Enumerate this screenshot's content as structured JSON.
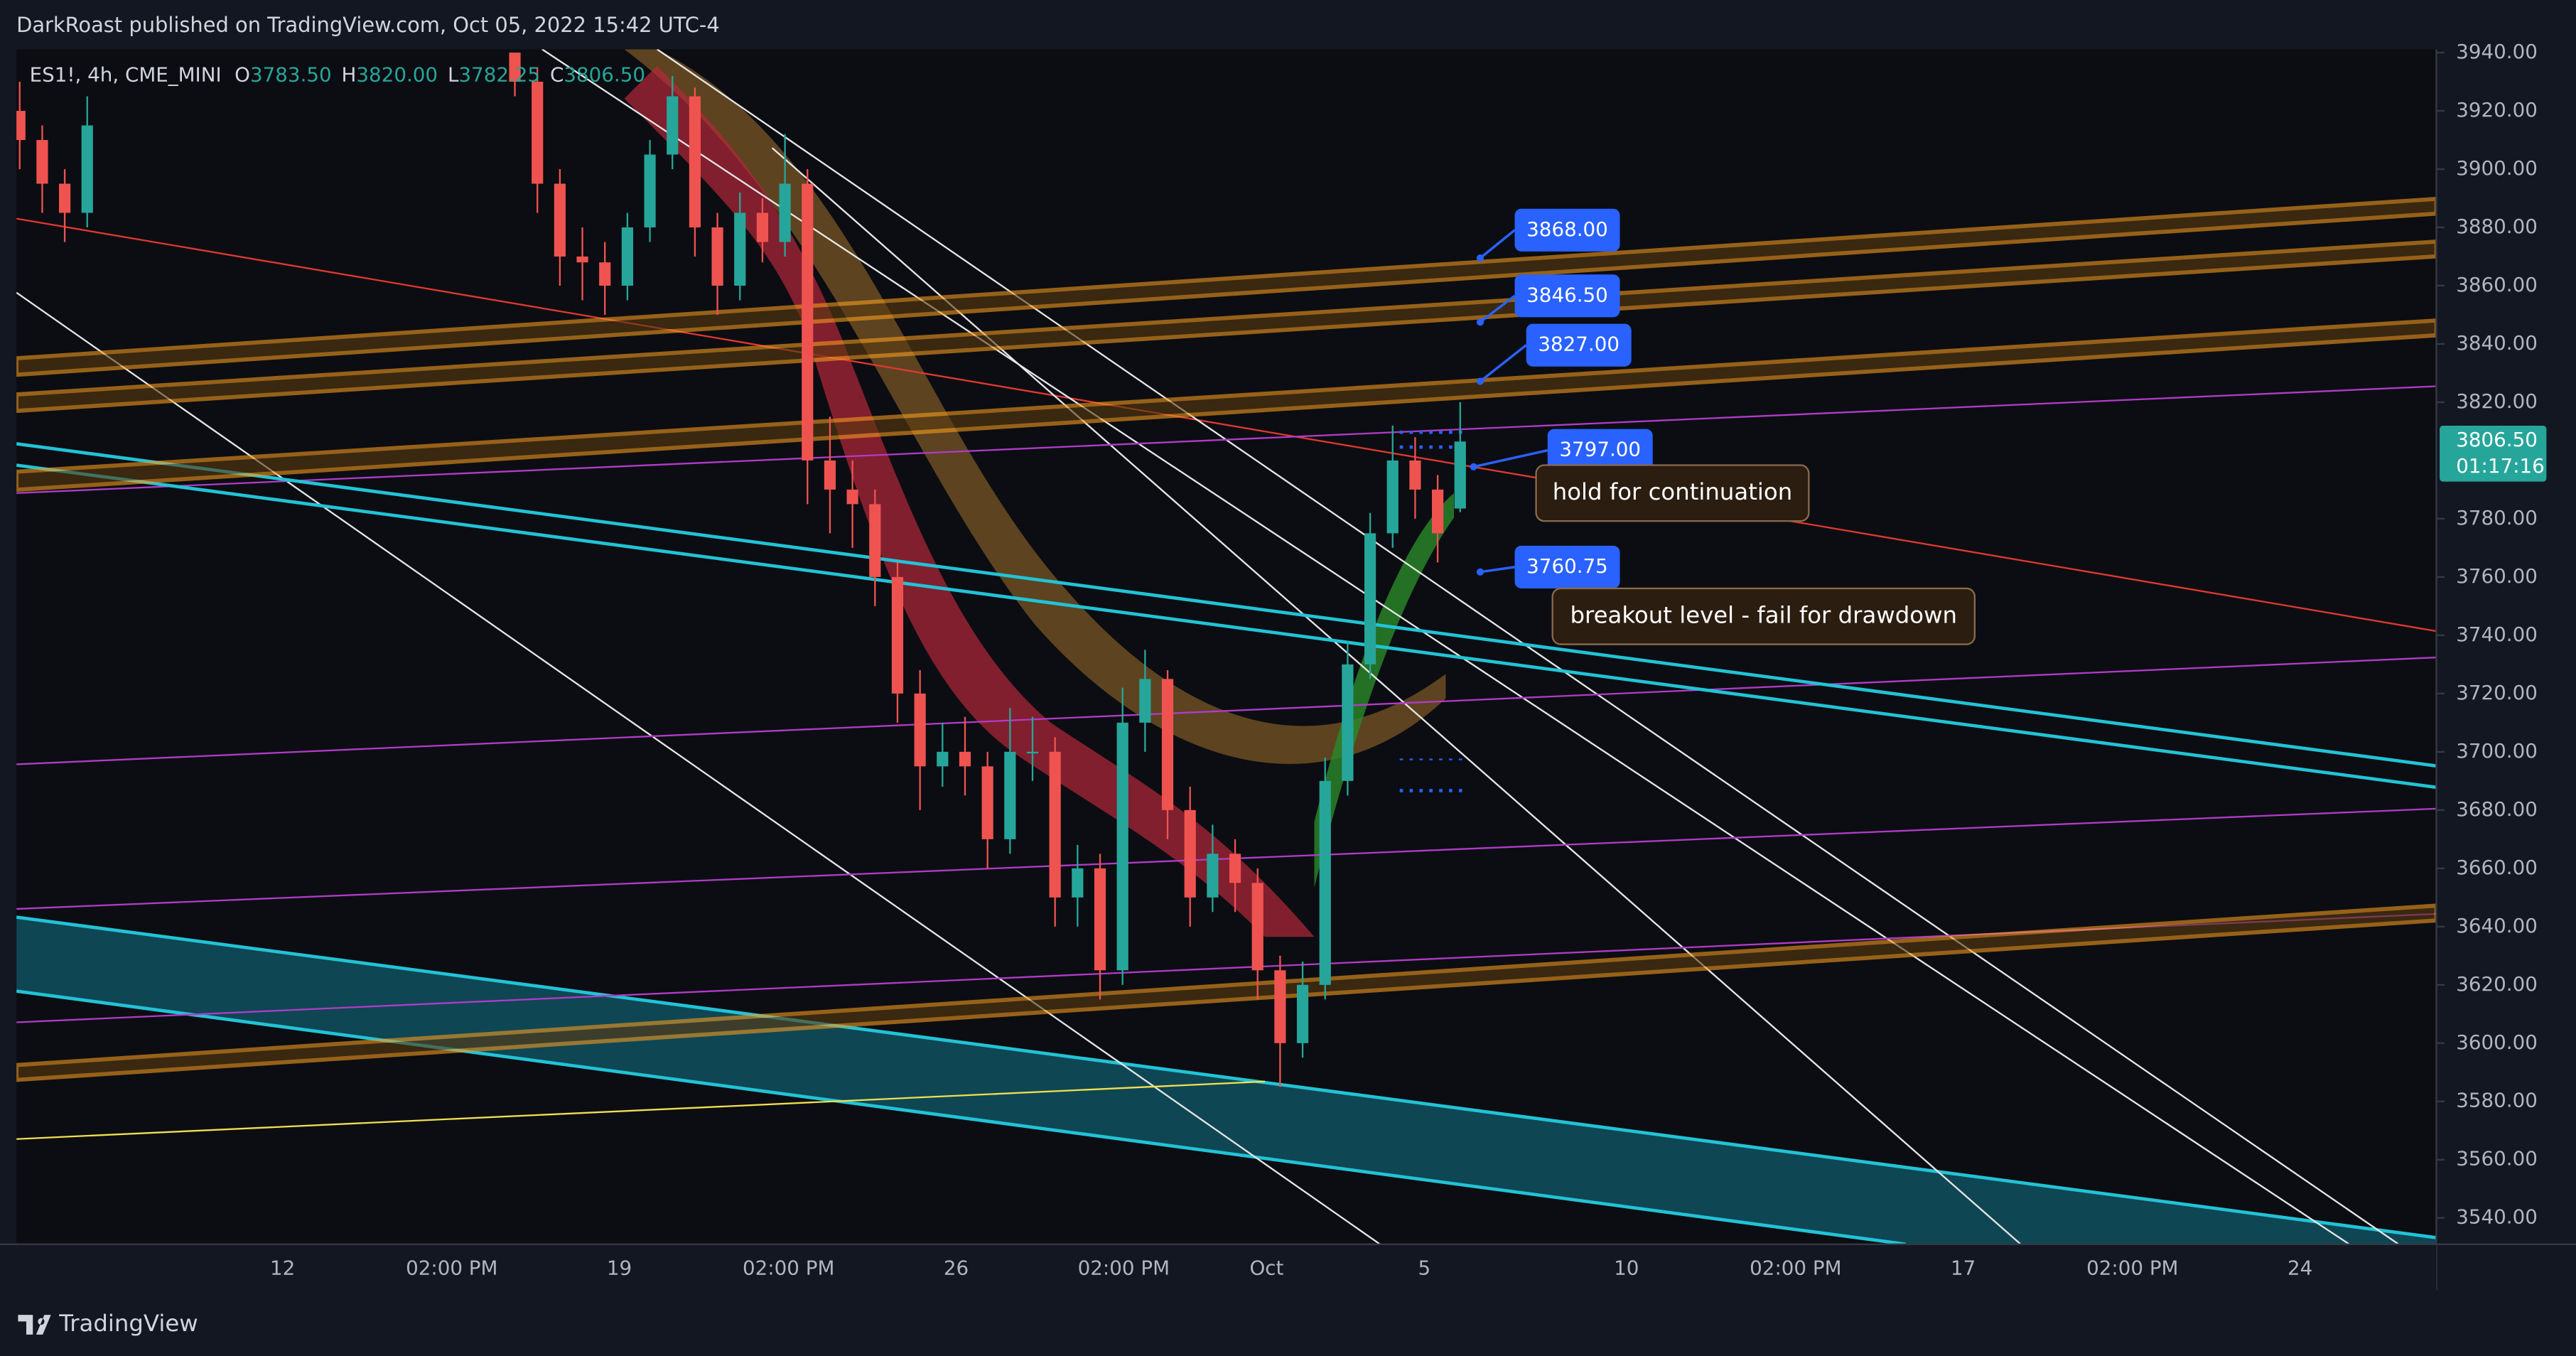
{
  "header": {
    "published": "DarkRoast published on TradingView.com, Oct 05, 2022 15:42 UTC-4"
  },
  "symbol": {
    "name": "ES1!, 4h, CME_MINI",
    "open_label": "O",
    "open": "3783.50",
    "high_label": "H",
    "high": "3820.00",
    "low_label": "L",
    "low": "3782.25",
    "close_label": "C",
    "close": "3806.50"
  },
  "candles": [
    [
      3920,
      3930,
      3900,
      3910
    ],
    [
      3910,
      3915,
      3885,
      3895
    ],
    [
      3895,
      3900,
      3875,
      3885
    ],
    [
      3885,
      3925,
      3880,
      3915
    ],
    null,
    null,
    null,
    null,
    null,
    null,
    null,
    null,
    null,
    null,
    null,
    null,
    null,
    null,
    null,
    null,
    null,
    null,
    [
      3940,
      3940,
      3925,
      3930
    ],
    [
      3930,
      3935,
      3885,
      3895
    ],
    [
      3895,
      3900,
      3860,
      3870
    ],
    [
      3870,
      3880,
      3855,
      3868
    ],
    [
      3868,
      3875,
      3850,
      3860
    ],
    [
      3860,
      3885,
      3855,
      3880
    ],
    [
      3880,
      3910,
      3875,
      3905
    ],
    [
      3905,
      3932,
      3900,
      3925
    ],
    [
      3925,
      3928,
      3870,
      3880
    ],
    [
      3880,
      3885,
      3850,
      3860
    ],
    [
      3860,
      3892,
      3855,
      3885
    ],
    [
      3885,
      3890,
      3868,
      3875
    ],
    [
      3875,
      3912,
      3870,
      3895
    ],
    [
      3895,
      3900,
      3785,
      3800
    ],
    [
      3800,
      3815,
      3775,
      3790
    ],
    [
      3790,
      3800,
      3770,
      3785
    ],
    [
      3785,
      3790,
      3750,
      3760
    ],
    [
      3760,
      3765,
      3710,
      3720
    ],
    [
      3720,
      3728,
      3680,
      3695
    ],
    [
      3695,
      3710,
      3688,
      3700
    ],
    [
      3700,
      3712,
      3685,
      3695
    ],
    [
      3695,
      3700,
      3660,
      3670
    ],
    [
      3670,
      3715,
      3665,
      3700
    ],
    [
      3700,
      3712,
      3690,
      3700
    ],
    [
      3700,
      3705,
      3640,
      3650
    ],
    [
      3650,
      3668,
      3640,
      3660
    ],
    [
      3660,
      3665,
      3615,
      3625
    ],
    [
      3625,
      3722,
      3620,
      3710
    ],
    [
      3710,
      3735,
      3700,
      3725
    ],
    [
      3725,
      3728,
      3670,
      3680
    ],
    [
      3680,
      3688,
      3640,
      3650
    ],
    [
      3650,
      3675,
      3645,
      3665
    ],
    [
      3665,
      3670,
      3645,
      3655
    ],
    [
      3655,
      3660,
      3615,
      3625
    ],
    [
      3625,
      3630,
      3585,
      3600
    ],
    [
      3600,
      3628,
      3595,
      3620
    ],
    [
      3620,
      3698,
      3615,
      3690
    ],
    [
      3690,
      3738,
      3685,
      3730
    ],
    [
      3730,
      3782,
      3725,
      3775
    ],
    [
      3775,
      3812,
      3770,
      3800
    ],
    [
      3800,
      3808,
      3780,
      3790
    ],
    [
      3790,
      3795,
      3765,
      3775
    ],
    [
      3783.5,
      3820,
      3782.25,
      3806.5
    ]
  ],
  "price_axis": {
    "ticks": [
      {
        "value": 3940,
        "label": "3940.00"
      },
      {
        "value": 3920,
        "label": "3920.00"
      },
      {
        "value": 3900,
        "label": "3900.00"
      },
      {
        "value": 3880,
        "label": "3880.00"
      },
      {
        "value": 3860,
        "label": "3860.00"
      },
      {
        "value": 3840,
        "label": "3840.00"
      },
      {
        "value": 3820,
        "label": "3820.00"
      },
      {
        "value": 3780,
        "label": "3780.00"
      },
      {
        "value": 3760,
        "label": "3760.00"
      },
      {
        "value": 3740,
        "label": "3740.00"
      },
      {
        "value": 3720,
        "label": "3720.00"
      },
      {
        "value": 3700,
        "label": "3700.00"
      },
      {
        "value": 3680,
        "label": "3680.00"
      },
      {
        "value": 3660,
        "label": "3660.00"
      },
      {
        "value": 3640,
        "label": "3640.00"
      },
      {
        "value": 3620,
        "label": "3620.00"
      },
      {
        "value": 3600,
        "label": "3600.00"
      },
      {
        "value": 3580,
        "label": "3580.00"
      },
      {
        "value": 3560,
        "label": "3560.00"
      },
      {
        "value": 3540,
        "label": "3540.00"
      }
    ],
    "last_price": "3806.50",
    "countdown": "01:17:16"
  },
  "time_axis": {
    "labels": [
      "12",
      "02:00 PM",
      "19",
      "02:00 PM",
      "26",
      "02:00 PM",
      "Oct",
      "5",
      "10",
      "02:00 PM",
      "17",
      "02:00 PM",
      "24"
    ]
  },
  "price_labels": [
    "3868.00",
    "3846.50",
    "3827.00",
    "3797.00",
    "3760.75"
  ],
  "annotations": [
    "hold for continuation",
    "breakout level - fail for drawdown"
  ],
  "footer": {
    "brand": "TradingView"
  }
}
